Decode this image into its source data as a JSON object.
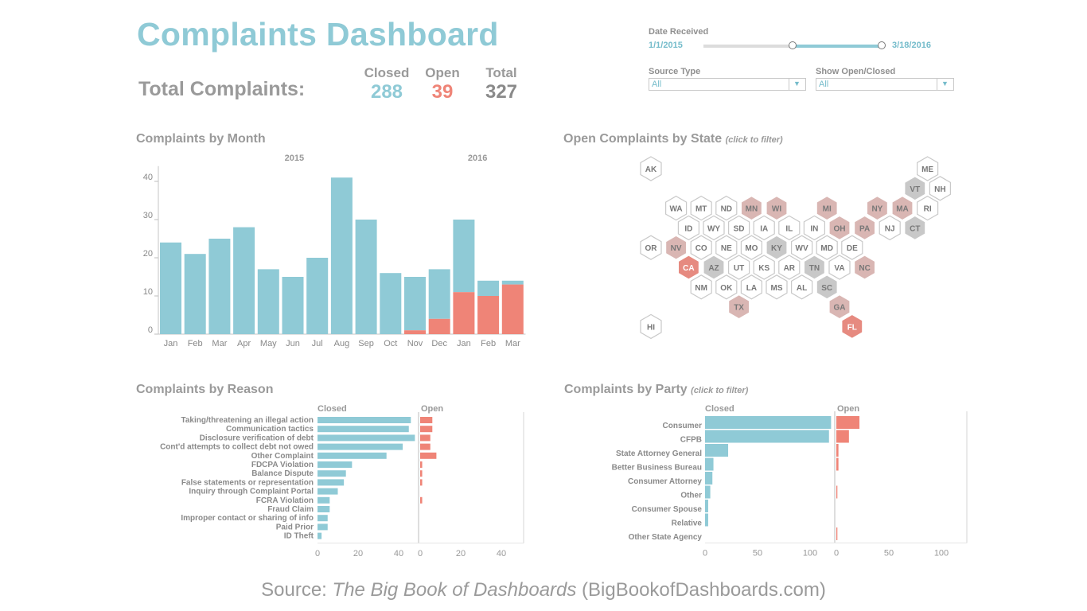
{
  "header": {
    "title": "Complaints Dashboard",
    "total_label": "Total Complaints:",
    "closed_label": "Closed",
    "closed_value": "288",
    "open_label": "Open",
    "open_value": "39",
    "total_col_label": "Total",
    "total_value": "327"
  },
  "filters": {
    "date_label": "Date Received",
    "date_start": "1/1/2015",
    "date_end": "3/18/2016",
    "date_range_fraction": [
      0.5,
      1.0
    ],
    "source_label": "Source Type",
    "source_value": "All",
    "openclosed_label": "Show Open/Closed",
    "openclosed_value": "All"
  },
  "colors": {
    "closed": "#8fcad6",
    "open": "#ef8477",
    "total": "#8a8a8a",
    "hex_grey": "#c8c8c8",
    "hex_light": "#d9b6b3",
    "hex_dark": "#e68a80"
  },
  "sections": {
    "month_title": "Complaints by Month",
    "state_title": "Open Complaints by State",
    "state_hint": "(click to filter)",
    "reason_title": "Complaints by Reason",
    "party_title": "Complaints by Party",
    "party_hint": "(click to filter)"
  },
  "source": {
    "prefix": "Source: ",
    "book": "The Big Book of Dashboards",
    "suffix": " (BigBookofDashboards.com)"
  },
  "chart_data": [
    {
      "id": "by_month",
      "type": "bar",
      "stacked": true,
      "year_labels": [
        "2015",
        "2016"
      ],
      "categories": [
        "Jan",
        "Feb",
        "Mar",
        "Apr",
        "May",
        "Jun",
        "Jul",
        "Aug",
        "Sep",
        "Oct",
        "Nov",
        "Dec",
        "Jan",
        "Feb",
        "Mar"
      ],
      "series": [
        {
          "name": "Closed",
          "values": [
            24,
            21,
            25,
            28,
            17,
            15,
            20,
            41,
            30,
            16,
            14,
            13,
            19,
            4,
            1
          ]
        },
        {
          "name": "Open",
          "values": [
            0,
            0,
            0,
            0,
            0,
            0,
            0,
            0,
            0,
            0,
            1,
            4,
            11,
            10,
            13
          ]
        }
      ],
      "yticks": [
        0,
        10,
        20,
        30,
        40
      ],
      "ylim": [
        0,
        44
      ]
    },
    {
      "id": "by_state",
      "type": "heatmap",
      "cells": [
        {
          "state": "AK",
          "col": 0,
          "row": 0,
          "level": "none"
        },
        {
          "state": "ME",
          "col": 11,
          "row": 0,
          "level": "none"
        },
        {
          "state": "VT",
          "col": 10,
          "row": 1,
          "level": "grey"
        },
        {
          "state": "NH",
          "col": 11,
          "row": 1,
          "level": "none"
        },
        {
          "state": "WA",
          "col": 1,
          "row": 2,
          "level": "none"
        },
        {
          "state": "MT",
          "col": 2,
          "row": 2,
          "level": "none"
        },
        {
          "state": "ND",
          "col": 3,
          "row": 2,
          "level": "none"
        },
        {
          "state": "MN",
          "col": 4,
          "row": 2,
          "level": "light"
        },
        {
          "state": "WI",
          "col": 5,
          "row": 2,
          "level": "light"
        },
        {
          "state": "MI",
          "col": 7,
          "row": 2,
          "level": "light"
        },
        {
          "state": "NY",
          "col": 9,
          "row": 2,
          "level": "light"
        },
        {
          "state": "MA",
          "col": 10,
          "row": 2,
          "level": "light"
        },
        {
          "state": "RI",
          "col": 11,
          "row": 2,
          "level": "none"
        },
        {
          "state": "ID",
          "col": 1,
          "row": 3,
          "level": "none"
        },
        {
          "state": "WY",
          "col": 2,
          "row": 3,
          "level": "none"
        },
        {
          "state": "SD",
          "col": 3,
          "row": 3,
          "level": "none"
        },
        {
          "state": "IA",
          "col": 4,
          "row": 3,
          "level": "none"
        },
        {
          "state": "IL",
          "col": 5,
          "row": 3,
          "level": "none"
        },
        {
          "state": "IN",
          "col": 6,
          "row": 3,
          "level": "none"
        },
        {
          "state": "OH",
          "col": 7,
          "row": 3,
          "level": "light"
        },
        {
          "state": "PA",
          "col": 8,
          "row": 3,
          "level": "light"
        },
        {
          "state": "NJ",
          "col": 9,
          "row": 3,
          "level": "none"
        },
        {
          "state": "CT",
          "col": 10,
          "row": 3,
          "level": "grey"
        },
        {
          "state": "OR",
          "col": 0,
          "row": 4,
          "level": "none"
        },
        {
          "state": "NV",
          "col": 1,
          "row": 4,
          "level": "light"
        },
        {
          "state": "CO",
          "col": 2,
          "row": 4,
          "level": "none"
        },
        {
          "state": "NE",
          "col": 3,
          "row": 4,
          "level": "none"
        },
        {
          "state": "MO",
          "col": 4,
          "row": 4,
          "level": "none"
        },
        {
          "state": "KY",
          "col": 5,
          "row": 4,
          "level": "grey"
        },
        {
          "state": "WV",
          "col": 6,
          "row": 4,
          "level": "none"
        },
        {
          "state": "MD",
          "col": 7,
          "row": 4,
          "level": "none"
        },
        {
          "state": "DE",
          "col": 8,
          "row": 4,
          "level": "none"
        },
        {
          "state": "CA",
          "col": 1,
          "row": 5,
          "level": "dark"
        },
        {
          "state": "AZ",
          "col": 2,
          "row": 5,
          "level": "grey"
        },
        {
          "state": "UT",
          "col": 3,
          "row": 5,
          "level": "none"
        },
        {
          "state": "KS",
          "col": 4,
          "row": 5,
          "level": "none"
        },
        {
          "state": "AR",
          "col": 5,
          "row": 5,
          "level": "none"
        },
        {
          "state": "TN",
          "col": 6,
          "row": 5,
          "level": "grey"
        },
        {
          "state": "VA",
          "col": 7,
          "row": 5,
          "level": "none"
        },
        {
          "state": "NC",
          "col": 8,
          "row": 5,
          "level": "light"
        },
        {
          "state": "NM",
          "col": 2,
          "row": 6,
          "level": "none"
        },
        {
          "state": "OK",
          "col": 3,
          "row": 6,
          "level": "none"
        },
        {
          "state": "LA",
          "col": 4,
          "row": 6,
          "level": "none"
        },
        {
          "state": "MS",
          "col": 5,
          "row": 6,
          "level": "none"
        },
        {
          "state": "AL",
          "col": 6,
          "row": 6,
          "level": "none"
        },
        {
          "state": "SC",
          "col": 7,
          "row": 6,
          "level": "grey"
        },
        {
          "state": "TX",
          "col": 3,
          "row": 7,
          "level": "light"
        },
        {
          "state": "GA",
          "col": 7,
          "row": 7,
          "level": "light"
        },
        {
          "state": "HI",
          "col": 0,
          "row": 8,
          "level": "none"
        },
        {
          "state": "FL",
          "col": 8,
          "row": 8,
          "level": "dark"
        }
      ]
    },
    {
      "id": "by_reason",
      "type": "bar",
      "orientation": "horizontal",
      "closed_label": "Closed",
      "open_label": "Open",
      "categories": [
        "Taking/threatening an illegal action",
        "Communication tactics",
        "Disclosure verification of debt",
        "Cont'd attempts to collect debt not owed",
        "Other Complaint",
        "FDCPA Violation",
        "Balance Dispute",
        "False statements or representation",
        "Inquiry through Complaint Portal",
        "FCRA Violation",
        "Fraud Claim",
        "Improper contact or sharing of info",
        "Paid Prior",
        "ID Theft"
      ],
      "series": [
        {
          "name": "Closed",
          "values": [
            46,
            45,
            48,
            42,
            34,
            17,
            14,
            13,
            10,
            6,
            6,
            5,
            5,
            2
          ]
        },
        {
          "name": "Open",
          "values": [
            6,
            6,
            5,
            5,
            8,
            1,
            1,
            1,
            0,
            1,
            0,
            0,
            0,
            0
          ]
        }
      ],
      "xticks_closed": [
        0,
        20,
        40
      ],
      "xticks_open": [
        0,
        20,
        40
      ],
      "xlim": [
        0,
        50
      ]
    },
    {
      "id": "by_party",
      "type": "bar",
      "orientation": "horizontal",
      "closed_label": "Closed",
      "open_label": "Open",
      "categories": [
        "Consumer",
        "CFPB",
        "State Attorney General",
        "Better Business Bureau",
        "Consumer Attorney",
        "Other",
        "Consumer Spouse",
        "Relative",
        "Other State Agency"
      ],
      "series": [
        {
          "name": "Closed",
          "values": [
            120,
            118,
            22,
            8,
            7,
            5,
            3,
            3,
            0
          ]
        },
        {
          "name": "Open",
          "values": [
            22,
            12,
            2,
            2,
            0,
            1,
            0,
            0,
            1
          ]
        }
      ],
      "xticks_closed": [
        0,
        50,
        100
      ],
      "xticks_open": [
        0,
        50,
        100
      ],
      "xlim": [
        0,
        125
      ]
    }
  ]
}
